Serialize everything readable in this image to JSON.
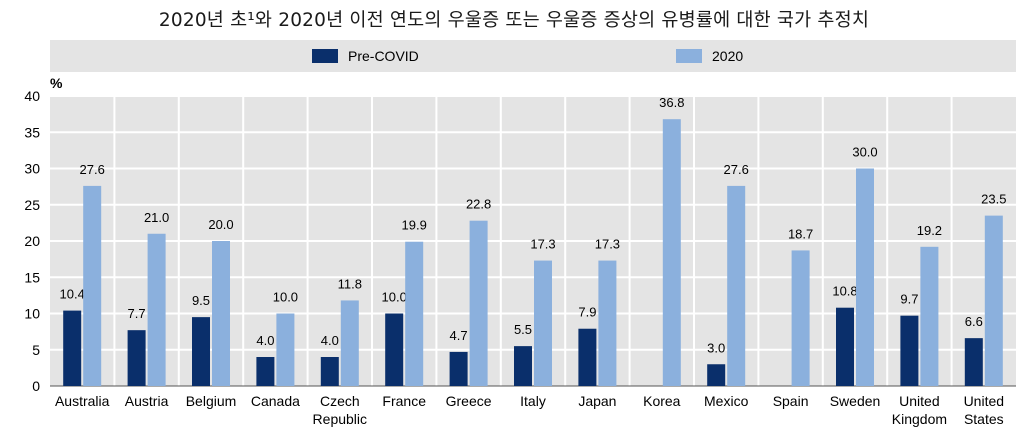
{
  "chart_data": {
    "type": "bar",
    "title": "2020년 초¹와 2020년 이전 연도의 우울증 또는 우울증 증상의 유병률에 대한 국가 추정치",
    "ylabel": "%",
    "ylim": [
      0,
      40
    ],
    "yticks": [
      "0",
      "5",
      "10",
      "15",
      "20",
      "25",
      "30",
      "35",
      "40"
    ],
    "grid": true,
    "legend_position": "top",
    "categories": [
      [
        "Australia"
      ],
      [
        "Austria"
      ],
      [
        "Belgium"
      ],
      [
        "Canada"
      ],
      [
        "Czech",
        "Republic"
      ],
      [
        "France"
      ],
      [
        "Greece"
      ],
      [
        "Italy"
      ],
      [
        "Japan"
      ],
      [
        "Korea"
      ],
      [
        "Mexico"
      ],
      [
        "Spain"
      ],
      [
        "Sweden"
      ],
      [
        "United",
        "Kingdom"
      ],
      [
        "United",
        "States"
      ]
    ],
    "series": [
      {
        "name": "Pre-COVID",
        "color": "#0a2f6b",
        "values": [
          10.4,
          7.7,
          9.5,
          4.0,
          4.0,
          10.0,
          4.7,
          5.5,
          7.9,
          null,
          3.0,
          null,
          10.8,
          9.7,
          6.6
        ],
        "labels": [
          "10.4",
          "7.7",
          "9.5",
          "4.0",
          "4.0",
          "10.0",
          "4.7",
          "5.5",
          "7.9",
          "",
          "3.0",
          "",
          "10.8",
          "9.7",
          "6.6"
        ]
      },
      {
        "name": "2020",
        "color": "#8bb0dd",
        "values": [
          27.6,
          21.0,
          20.0,
          10.0,
          11.8,
          19.9,
          22.8,
          17.3,
          17.3,
          36.8,
          27.6,
          18.7,
          30.0,
          19.2,
          23.5
        ],
        "labels": [
          "27.6",
          "21.0",
          "20.0",
          "10.0",
          "11.8",
          "19.9",
          "22.8",
          "17.3",
          "17.3",
          "36.8",
          "27.6",
          "18.7",
          "30.0",
          "19.2",
          "23.5"
        ]
      }
    ],
    "colors": {
      "legend_band": "#e4e4e4",
      "grid": "#ffffff",
      "plot_bg": "#e4e4e4"
    }
  }
}
